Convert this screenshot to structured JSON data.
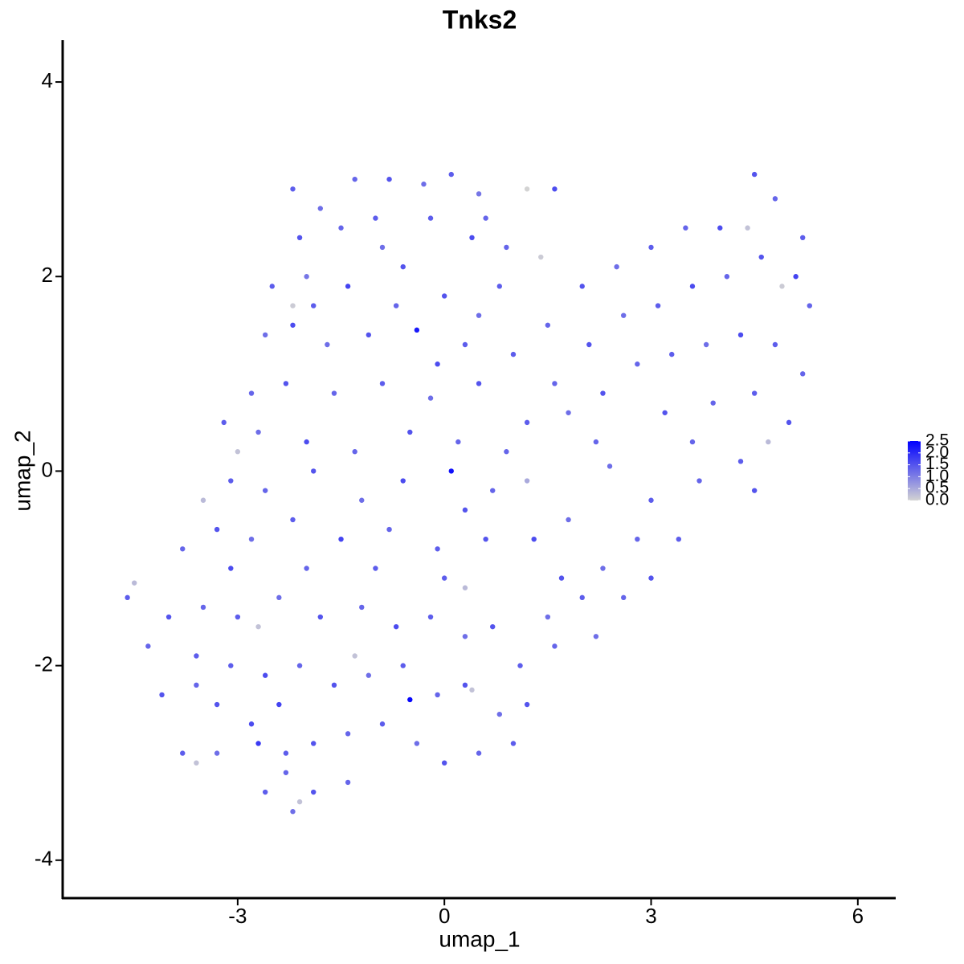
{
  "chart_data": {
    "type": "scatter",
    "title": "Tnks2",
    "x_label": "umap_1",
    "y_label": "umap_2",
    "x": [
      -2.2,
      -1.8,
      -1.3,
      -0.8,
      -0.3,
      0.1,
      0.5,
      1.2,
      1.6,
      -2.1,
      -1.5,
      -0.9,
      -0.2,
      0.4,
      0.9,
      -2.5,
      -2.0,
      -1.4,
      -0.7,
      0.0,
      0.8,
      -2.6,
      -2.2,
      -1.7,
      -1.1,
      -0.4,
      0.3,
      -2.8,
      -2.3,
      -1.6,
      -0.9,
      -0.2,
      0.5,
      -3.2,
      -2.7,
      -2.0,
      -1.3,
      -0.5,
      0.2,
      -2.2,
      -3.0,
      -3.5,
      -3.1,
      -2.6,
      -1.9,
      -1.2,
      -0.6,
      0.1,
      0.7,
      1.2,
      -3.8,
      -3.3,
      -2.8,
      -2.2,
      -1.5,
      -0.8,
      -0.1,
      0.6,
      1.3,
      1.8,
      1.0,
      1.5,
      2.0,
      2.5,
      3.0,
      3.5,
      4.0,
      4.5,
      4.8,
      5.2,
      4.4,
      1.4,
      1.6,
      2.1,
      2.6,
      3.1,
      3.6,
      4.1,
      4.6,
      5.1,
      5.3,
      1.2,
      1.8,
      2.3,
      2.8,
      3.3,
      3.8,
      4.3,
      4.8,
      5.2,
      2.2,
      3.2,
      3.9,
      4.5,
      5.0,
      4.9,
      4.7,
      3.6,
      4.3,
      2.4,
      3.0,
      3.7,
      4.5,
      2.8,
      3.4,
      2.3,
      3.0,
      2.6,
      2.0,
      2.2,
      1.7,
      1.6,
      1.1,
      0.7,
      0.3,
      -0.2,
      -0.7,
      -1.2,
      -1.8,
      -2.4,
      -3.0,
      -3.5,
      -4.0,
      -4.6,
      -4.5,
      -4.3,
      1.2,
      0.8,
      0.3,
      -0.1,
      -0.6,
      -1.1,
      -1.6,
      -2.1,
      -2.6,
      -3.1,
      -3.6,
      -4.1,
      -0.5,
      0.4,
      1.0,
      0.5,
      0.0,
      -0.4,
      -0.9,
      -1.4,
      -1.9,
      -2.3,
      -2.8,
      -3.3,
      -3.8,
      -1.4,
      -1.9,
      -2.3,
      -2.6,
      -2.2,
      -2.1,
      -3.6,
      -2.7,
      -3.3,
      -1.3,
      0.3,
      -2.7,
      -1.0,
      -0.6,
      0.6,
      -1.9,
      0.5,
      -0.1,
      0.9,
      -1.0,
      0.3,
      -2.0,
      -3.1,
      -3.6,
      1.5,
      0.0,
      -2.4
    ],
    "y": [
      2.9,
      2.7,
      3.0,
      3.0,
      2.95,
      3.05,
      2.85,
      2.9,
      2.9,
      2.4,
      2.5,
      2.3,
      2.6,
      2.4,
      2.3,
      1.9,
      2.0,
      1.9,
      1.7,
      1.8,
      1.9,
      1.4,
      1.5,
      1.3,
      1.4,
      1.45,
      1.3,
      0.8,
      0.9,
      0.8,
      0.9,
      0.75,
      0.9,
      0.5,
      0.4,
      0.3,
      0.2,
      0.4,
      0.3,
      1.7,
      0.2,
      -0.3,
      -0.1,
      -0.2,
      0.0,
      -0.3,
      -0.1,
      0.0,
      -0.2,
      -0.1,
      -0.8,
      -0.6,
      -0.7,
      -0.5,
      -0.7,
      -0.6,
      -0.8,
      -0.7,
      -0.7,
      -0.5,
      1.2,
      1.5,
      1.9,
      2.1,
      2.3,
      2.5,
      2.5,
      3.05,
      2.8,
      2.4,
      2.5,
      2.2,
      0.9,
      1.3,
      1.6,
      1.7,
      1.9,
      2.0,
      2.2,
      2.0,
      1.7,
      0.5,
      0.6,
      0.8,
      1.1,
      1.2,
      1.3,
      1.4,
      1.3,
      1.0,
      0.3,
      0.6,
      0.7,
      0.8,
      0.5,
      1.9,
      0.3,
      0.3,
      0.1,
      0.05,
      -0.3,
      -0.1,
      -0.2,
      -0.7,
      -0.7,
      -1.0,
      -1.1,
      -1.3,
      -1.3,
      -1.7,
      -1.1,
      -1.8,
      -2.0,
      -1.6,
      -1.7,
      -1.5,
      -1.6,
      -1.4,
      -1.5,
      -1.3,
      -1.5,
      -1.4,
      -1.5,
      -1.3,
      -1.15,
      -1.8,
      -2.4,
      -2.5,
      -2.2,
      -2.3,
      -2.0,
      -2.1,
      -2.2,
      -2.0,
      -2.1,
      -2.0,
      -2.2,
      -2.3,
      -2.35,
      -2.25,
      -2.8,
      -2.9,
      -3.0,
      -2.8,
      -2.6,
      -2.7,
      -2.8,
      -2.9,
      -2.6,
      -2.9,
      -2.9,
      -3.2,
      -3.3,
      -3.1,
      -3.3,
      -3.5,
      -3.4,
      -3.0,
      -2.8,
      -2.4,
      -1.9,
      -1.2,
      -1.6,
      2.6,
      2.1,
      2.6,
      1.7,
      1.6,
      1.1,
      0.2,
      -1.0,
      -0.4,
      -1.0,
      -1.0,
      -1.9,
      -1.5,
      -1.1,
      -2.4
    ],
    "expression": [
      1.4,
      1.2,
      1.3,
      1.5,
      1.2,
      1.4,
      1.1,
      0,
      1.6,
      1.5,
      1.3,
      1.2,
      1.4,
      1.6,
      1.3,
      1.4,
      1.1,
      1.7,
      1.3,
      1.5,
      1.4,
      1.2,
      1.6,
      1.2,
      1.5,
      2.2,
      1.4,
      1.3,
      1.5,
      1.3,
      1.4,
      1.2,
      1.5,
      1.4,
      1.2,
      1.6,
      1.3,
      1.5,
      1.3,
      0.1,
      0.2,
      0.3,
      1.4,
      1.3,
      1.5,
      1.2,
      1.6,
      2.3,
      1.3,
      0.5,
      1.3,
      1.5,
      1.2,
      1.4,
      1.7,
      1.3,
      1.4,
      1.5,
      1.6,
      1.2,
      1.4,
      1.3,
      1.5,
      1.2,
      1.4,
      1.3,
      1.6,
      1.5,
      1.3,
      1.4,
      0.2,
      0.1,
      1.3,
      1.5,
      1.2,
      1.4,
      1.6,
      1.3,
      1.5,
      1.7,
      1.3,
      1.4,
      1.2,
      1.5,
      1.3,
      1.4,
      1.2,
      1.6,
      1.4,
      1.3,
      1.3,
      1.5,
      1.3,
      1.4,
      1.5,
      0.1,
      0.3,
      1.3,
      1.4,
      1.2,
      1.4,
      1.3,
      1.5,
      1.3,
      1.4,
      1.2,
      1.5,
      1.3,
      1.4,
      1.2,
      1.5,
      1.3,
      1.4,
      1.5,
      1.2,
      1.4,
      1.6,
      1.3,
      1.5,
      1.2,
      1.4,
      1.3,
      1.5,
      1.4,
      0.3,
      1.3,
      1.5,
      1.2,
      1.5,
      1.3,
      1.4,
      1.2,
      1.5,
      1.3,
      1.6,
      1.4,
      1.3,
      1.5,
      2.4,
      0.2,
      1.4,
      1.3,
      1.5,
      1.2,
      1.4,
      1.3,
      1.5,
      1.4,
      1.6,
      1.2,
      1.4,
      1.3,
      1.5,
      1.3,
      1.4,
      1.2,
      0.2,
      0.2,
      1.8,
      1.5,
      0.2,
      0.3,
      0.2,
      1.4,
      1.5,
      1.3,
      1.4,
      1.2,
      1.6,
      1.3,
      1.4,
      1.5,
      1.3,
      1.6,
      1.4,
      1.2,
      1.4,
      1.7
    ],
    "xlim": [
      -5.54,
      6.55
    ],
    "ylim": [
      -4.39,
      4.43
    ],
    "xticks": [
      -3,
      0,
      3,
      6
    ],
    "yticks": [
      -4,
      -2,
      0,
      2,
      4
    ],
    "colorbar": {
      "lim": [
        0,
        2.5
      ],
      "ticks": [
        {
          "value": 0,
          "label": "0.0"
        },
        0.5,
        {
          "value": 1,
          "label": "1.0"
        },
        1.5,
        {
          "value": 2,
          "label": "2.0"
        },
        2.5
      ],
      "low_color": "#d3d3d3",
      "high_color": "#0000ff"
    }
  }
}
